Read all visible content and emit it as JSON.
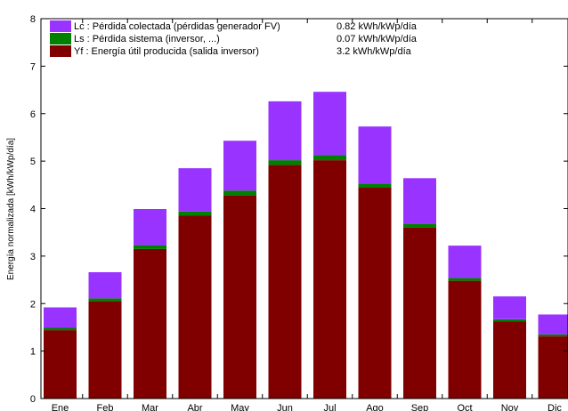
{
  "chart_data": {
    "type": "bar",
    "stacked": true,
    "categories": [
      "Ene",
      "Feb",
      "Mar",
      "Abr",
      "May",
      "Jun",
      "Jul",
      "Ago",
      "Sep",
      "Oct",
      "Nov",
      "Dic"
    ],
    "series": [
      {
        "name": "Yf : Energía útil producida  (salida inversor)",
        "value_text": "3.2 kWh/kWp/día",
        "color": "#800000",
        "values": [
          1.44,
          2.05,
          3.15,
          3.85,
          4.28,
          4.92,
          5.02,
          4.44,
          3.6,
          2.48,
          1.62,
          1.31
        ]
      },
      {
        "name": "Ls : Pérdida sistema  (inversor, ...)",
        "value_text": "0.07 kWh/kWp/día",
        "color": "#008000",
        "values": [
          0.05,
          0.06,
          0.08,
          0.09,
          0.1,
          0.1,
          0.11,
          0.09,
          0.08,
          0.06,
          0.05,
          0.04
        ]
      },
      {
        "name": "Lc : Pérdida colectada (pérdidas generador FV)",
        "value_text": "0.82 kWh/kWp/día",
        "color": "#9933ff",
        "values": [
          0.43,
          0.55,
          0.76,
          0.91,
          1.05,
          1.24,
          1.33,
          1.2,
          0.96,
          0.68,
          0.48,
          0.42
        ]
      }
    ],
    "ylabel": "Energía normalizada [kWh/kWp/día]",
    "xlabel": "",
    "ylim": [
      0,
      8
    ],
    "yticks": [
      "0",
      "1",
      "2",
      "3",
      "4",
      "5",
      "6",
      "7",
      "8"
    ],
    "legend_position": "top-left",
    "legend_order": [
      2,
      1,
      0
    ]
  }
}
